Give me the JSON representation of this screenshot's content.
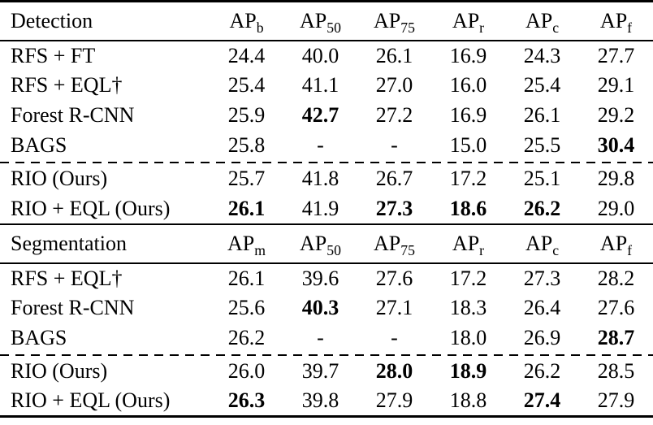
{
  "page": {
    "background_color": "#ffffff",
    "text_color": "#000000",
    "rule_color": "#000000"
  },
  "tables": [
    {
      "section": "Detection",
      "columns": [
        {
          "base": "AP",
          "sub": "b"
        },
        {
          "base": "AP",
          "sub": "50"
        },
        {
          "base": "AP",
          "sub": "75"
        },
        {
          "base": "AP",
          "sub": "r"
        },
        {
          "base": "AP",
          "sub": "c"
        },
        {
          "base": "AP",
          "sub": "f"
        }
      ],
      "dashed_before_row_index": 4,
      "rows": [
        {
          "method": "RFS + FT",
          "values": [
            {
              "v": "24.4"
            },
            {
              "v": "40.0"
            },
            {
              "v": "26.1"
            },
            {
              "v": "16.9"
            },
            {
              "v": "24.3"
            },
            {
              "v": "27.7"
            }
          ]
        },
        {
          "method": "RFS + EQL†",
          "values": [
            {
              "v": "25.4"
            },
            {
              "v": "41.1"
            },
            {
              "v": "27.0"
            },
            {
              "v": "16.0"
            },
            {
              "v": "25.4"
            },
            {
              "v": "29.1"
            }
          ]
        },
        {
          "method": "Forest R-CNN",
          "values": [
            {
              "v": "25.9"
            },
            {
              "v": "42.7",
              "bold": true
            },
            {
              "v": "27.2"
            },
            {
              "v": "16.9"
            },
            {
              "v": "26.1"
            },
            {
              "v": "29.2"
            }
          ]
        },
        {
          "method": "BAGS",
          "values": [
            {
              "v": "25.8"
            },
            {
              "v": "-"
            },
            {
              "v": "-"
            },
            {
              "v": "15.0"
            },
            {
              "v": "25.5"
            },
            {
              "v": "30.4",
              "bold": true
            }
          ]
        },
        {
          "method": "RIO (Ours)",
          "values": [
            {
              "v": "25.7"
            },
            {
              "v": "41.8"
            },
            {
              "v": "26.7"
            },
            {
              "v": "17.2"
            },
            {
              "v": "25.1"
            },
            {
              "v": "29.8"
            }
          ]
        },
        {
          "method": "RIO + EQL (Ours)",
          "values": [
            {
              "v": "26.1",
              "bold": true
            },
            {
              "v": "41.9"
            },
            {
              "v": "27.3",
              "bold": true
            },
            {
              "v": "18.6",
              "bold": true
            },
            {
              "v": "26.2",
              "bold": true
            },
            {
              "v": "29.0"
            }
          ]
        }
      ]
    },
    {
      "section": "Segmentation",
      "columns": [
        {
          "base": "AP",
          "sub": "m"
        },
        {
          "base": "AP",
          "sub": "50"
        },
        {
          "base": "AP",
          "sub": "75"
        },
        {
          "base": "AP",
          "sub": "r"
        },
        {
          "base": "AP",
          "sub": "c"
        },
        {
          "base": "AP",
          "sub": "f"
        }
      ],
      "dashed_before_row_index": 3,
      "rows": [
        {
          "method": "RFS + EQL†",
          "values": [
            {
              "v": "26.1"
            },
            {
              "v": "39.6"
            },
            {
              "v": "27.6"
            },
            {
              "v": "17.2"
            },
            {
              "v": "27.3"
            },
            {
              "v": "28.2"
            }
          ]
        },
        {
          "method": "Forest R-CNN",
          "values": [
            {
              "v": "25.6"
            },
            {
              "v": "40.3",
              "bold": true
            },
            {
              "v": "27.1"
            },
            {
              "v": "18.3"
            },
            {
              "v": "26.4"
            },
            {
              "v": "27.6"
            }
          ]
        },
        {
          "method": "BAGS",
          "values": [
            {
              "v": "26.2"
            },
            {
              "v": "-"
            },
            {
              "v": "-"
            },
            {
              "v": "18.0"
            },
            {
              "v": "26.9"
            },
            {
              "v": "28.7",
              "bold": true
            }
          ]
        },
        {
          "method": "RIO (Ours)",
          "values": [
            {
              "v": "26.0"
            },
            {
              "v": "39.7"
            },
            {
              "v": "28.0",
              "bold": true
            },
            {
              "v": "18.9",
              "bold": true
            },
            {
              "v": "26.2"
            },
            {
              "v": "28.5"
            }
          ]
        },
        {
          "method": "RIO + EQL (Ours)",
          "values": [
            {
              "v": "26.3",
              "bold": true
            },
            {
              "v": "39.8"
            },
            {
              "v": "27.9"
            },
            {
              "v": "18.8"
            },
            {
              "v": "27.4",
              "bold": true
            },
            {
              "v": "27.9"
            }
          ]
        }
      ]
    }
  ]
}
